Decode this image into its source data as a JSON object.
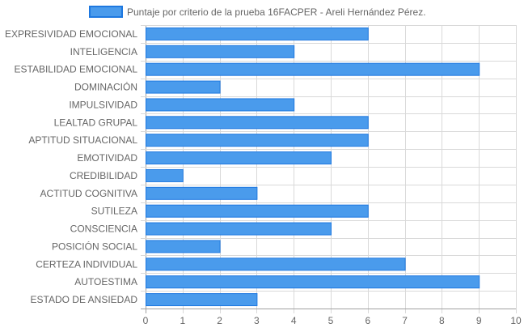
{
  "chart_data": {
    "type": "bar",
    "orientation": "horizontal",
    "categories": [
      "EXPRESIVIDAD EMOCIONAL",
      "INTELIGENCIA",
      "ESTABILIDAD EMOCIONAL",
      "DOMINACIÓN",
      "IMPULSIVIDAD",
      "LEALTAD GRUPAL",
      "APTITUD SITUACIONAL",
      "EMOTIVIDAD",
      "CREDIBILIDAD",
      "ACTITUD COGNITIVA",
      "SUTILEZA",
      "CONSCIENCIA",
      "POSICIÓN SOCIAL",
      "CERTEZA INDIVIDUAL",
      "AUTOESTIMA",
      "ESTADO DE ANSIEDAD"
    ],
    "series": [
      {
        "name": "Puntaje por criterio de la prueba 16FACPER - Areli Hernández Pérez.",
        "values": [
          6,
          4,
          9,
          2,
          4,
          6,
          6,
          5,
          1,
          3,
          6,
          5,
          2,
          7,
          9,
          3
        ],
        "color": "#4a9bec",
        "border_color": "#1e78e0"
      }
    ],
    "xlim": [
      0,
      10
    ],
    "xticks": [
      "0",
      "1",
      "2",
      "3",
      "4",
      "5",
      "6",
      "7",
      "8",
      "9",
      "10"
    ],
    "grid": true,
    "legend_position": "top"
  }
}
